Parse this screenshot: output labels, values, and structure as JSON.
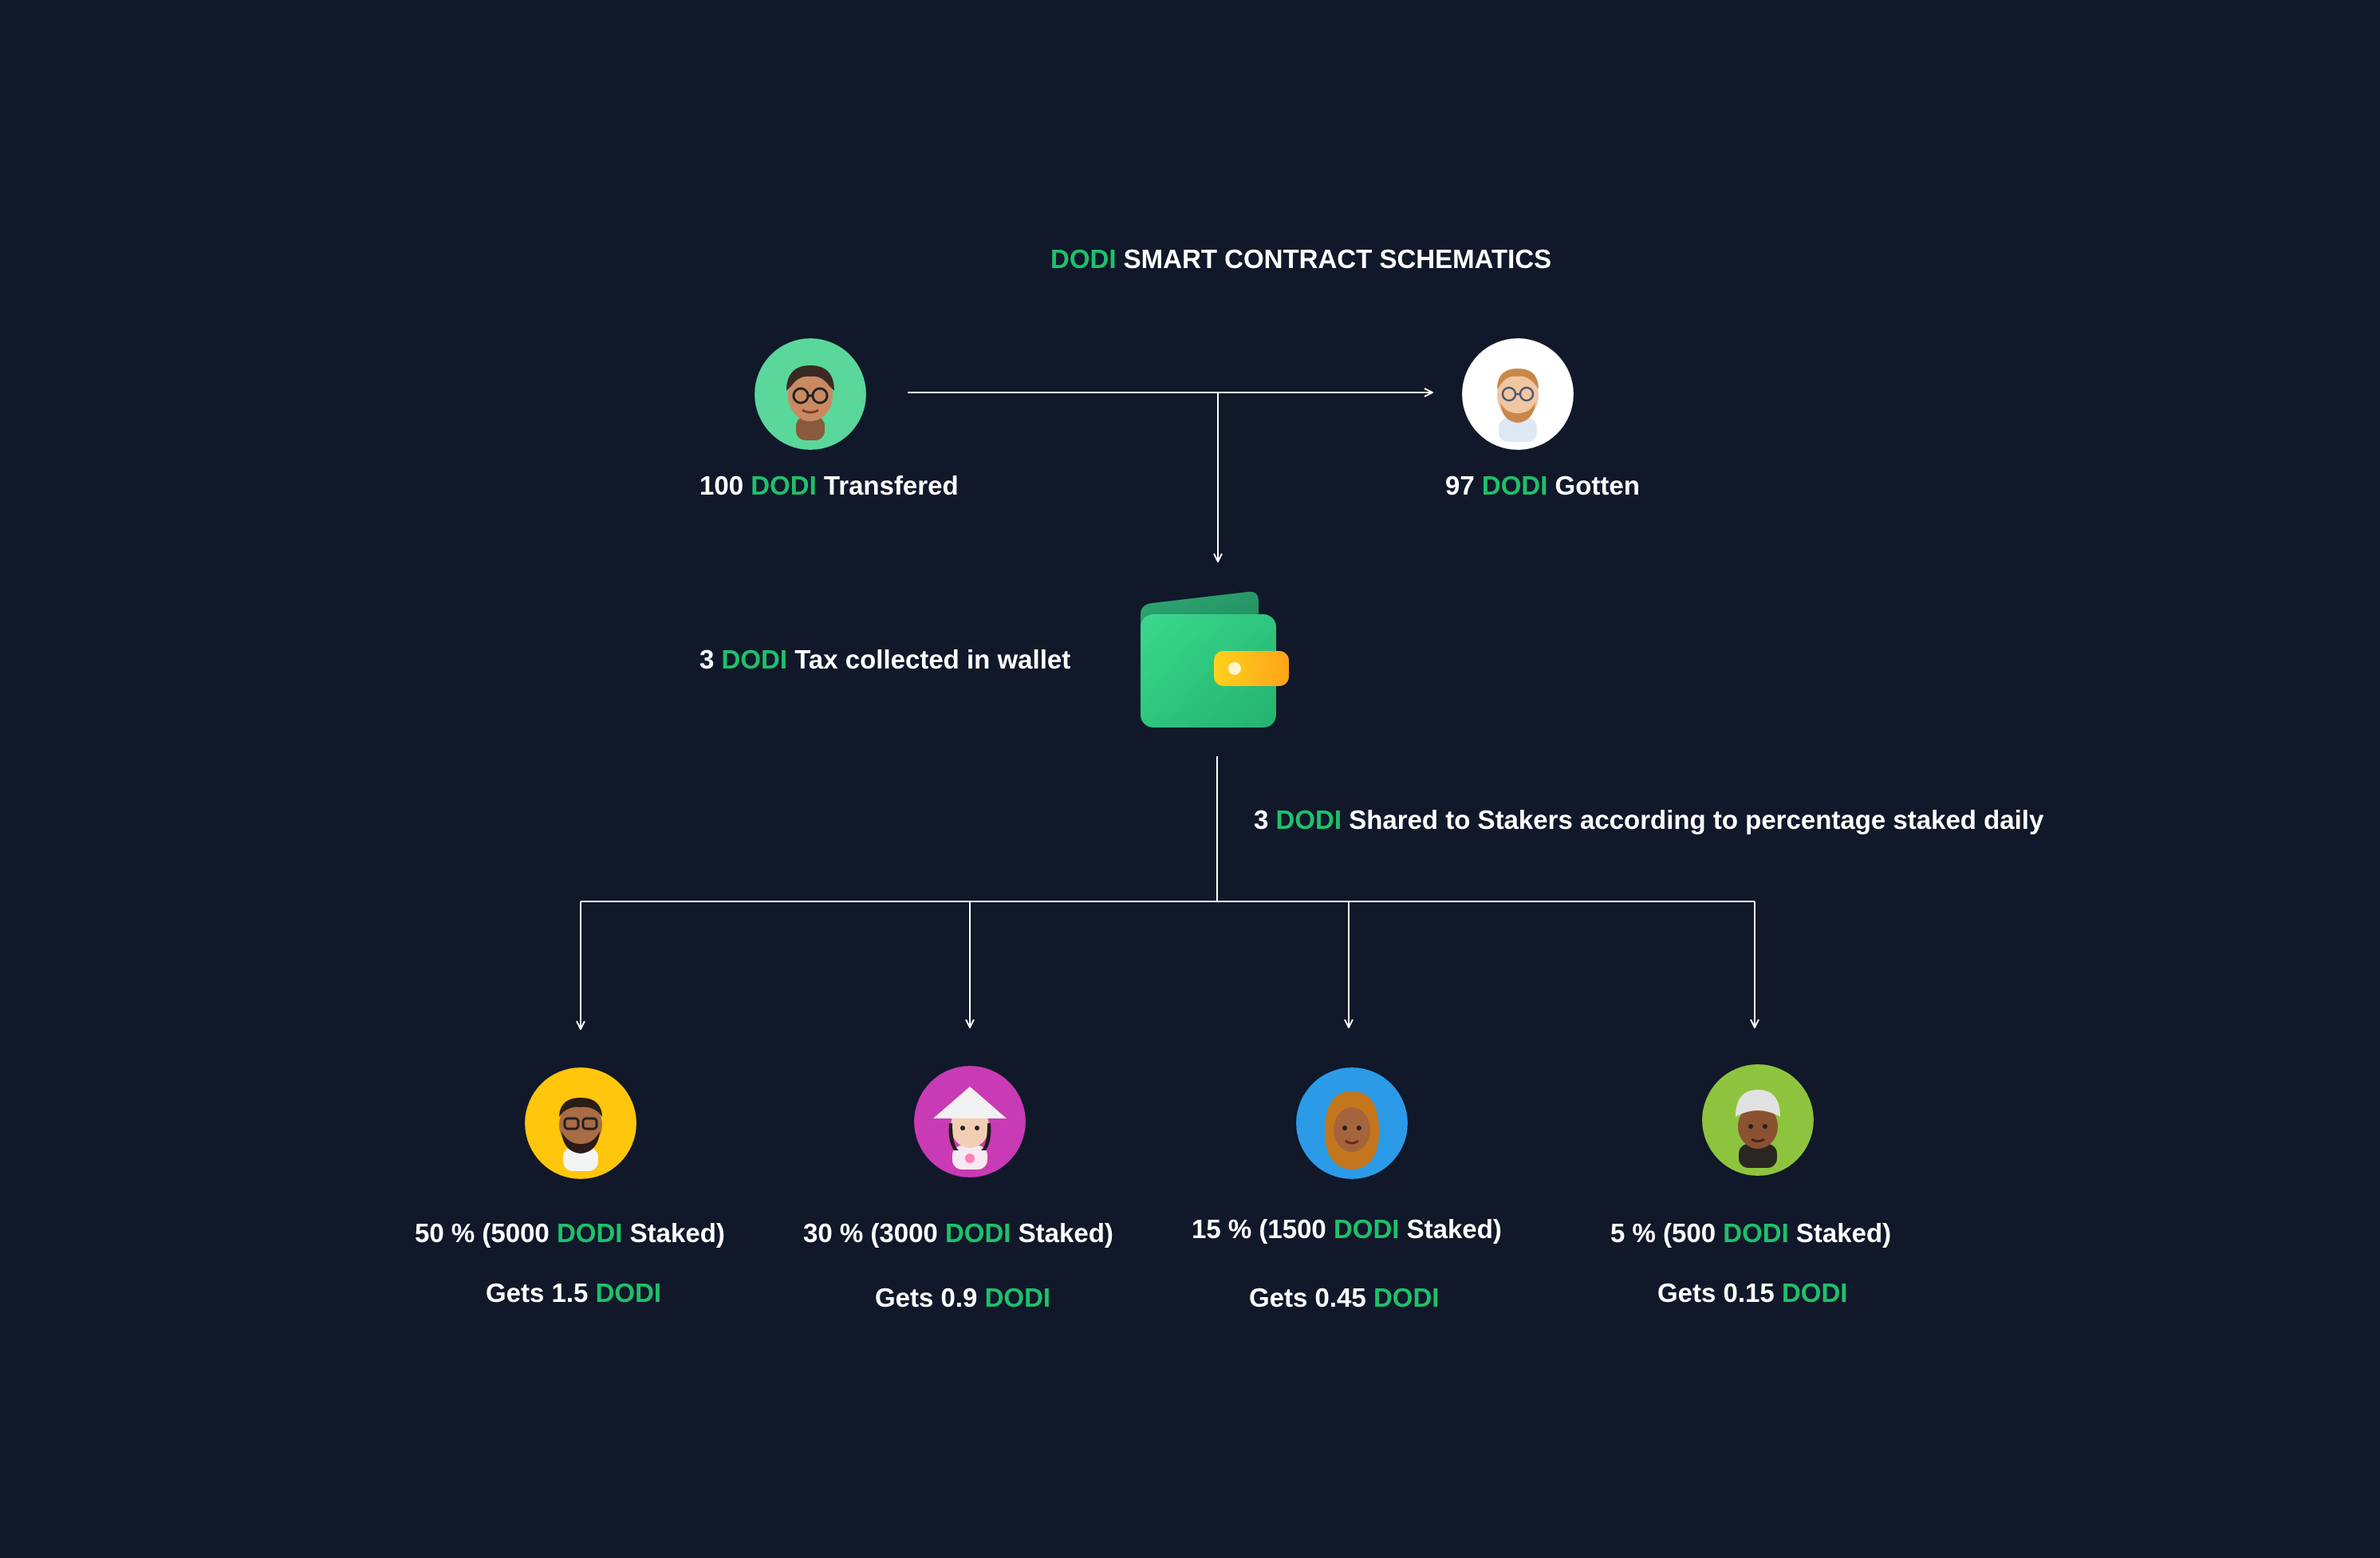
{
  "title": {
    "highlight": "DODI",
    "rest": " SMART CONTRACT SCHEMATICS"
  },
  "sender": {
    "amount": "100 ",
    "token": "DODI",
    "suffix": " Transfered",
    "bg": "#5ad79a"
  },
  "receiver": {
    "amount": "97 ",
    "token": "DODI",
    "suffix": " Gotten",
    "bg": "#ffffff"
  },
  "tax": {
    "amount": "3 ",
    "token": "DODI",
    "suffix": " Tax collected in wallet"
  },
  "share": {
    "amount": "3 ",
    "token": "DODI",
    "suffix": " Shared to Stakers according to percentage staked daily"
  },
  "stakers": [
    {
      "pct_prefix": "50 % (5000 ",
      "token": "DODI",
      "pct_suffix": " Staked)",
      "gets_prefix": "Gets 1.5 ",
      "gets_token": "DODI",
      "bg": "#ffc60b"
    },
    {
      "pct_prefix": "30 % (3000 ",
      "token": "DODI",
      "pct_suffix": " Staked)",
      "gets_prefix": "Gets 0.9 ",
      "gets_token": "DODI",
      "bg": "#c93bb4"
    },
    {
      "pct_prefix": "15 % (1500 ",
      "token": "DODI",
      "pct_suffix": " Staked)",
      "gets_prefix": "Gets 0.45 ",
      "gets_token": "DODI",
      "bg": "#2b9be8"
    },
    {
      "pct_prefix": "5 % (500 ",
      "token": "DODI",
      "pct_suffix": " Staked)",
      "gets_prefix": "Gets 0.15 ",
      "gets_token": "DODI",
      "bg": "#8ec43d"
    }
  ],
  "colors": {
    "background": "#10182a",
    "accent": "#1fc06b",
    "text": "#ffffff",
    "line": "#ffffff"
  },
  "icons": {
    "wallet": "wallet-icon",
    "avatar": "memoji-avatar-icon"
  }
}
